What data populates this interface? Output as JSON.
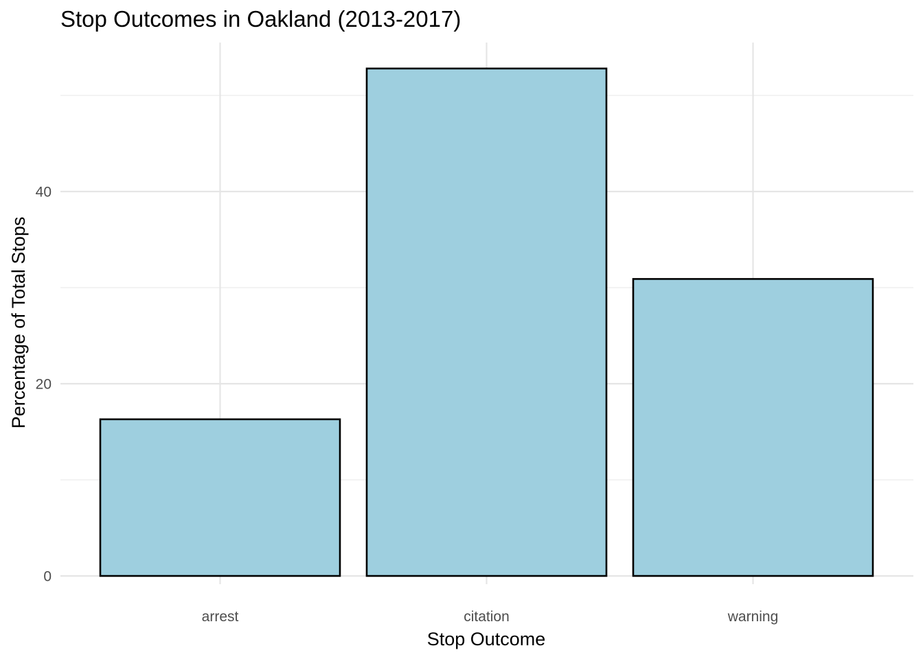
{
  "chart_data": {
    "type": "bar",
    "title": "Stop Outcomes in Oakland (2013-2017)",
    "xlabel": "Stop Outcome",
    "ylabel": "Percentage of Total Stops",
    "categories": [
      "arrest",
      "citation",
      "warning"
    ],
    "values": [
      16.3,
      52.8,
      30.9
    ],
    "ylim": [
      0,
      55.3
    ],
    "yticks": [
      0,
      20,
      40
    ],
    "ytick_labels": [
      "0",
      "20",
      "40"
    ],
    "grid": true,
    "legend": "none",
    "colors": {
      "bar_fill": "#9ecfdf",
      "bar_outline": "#000000"
    }
  }
}
